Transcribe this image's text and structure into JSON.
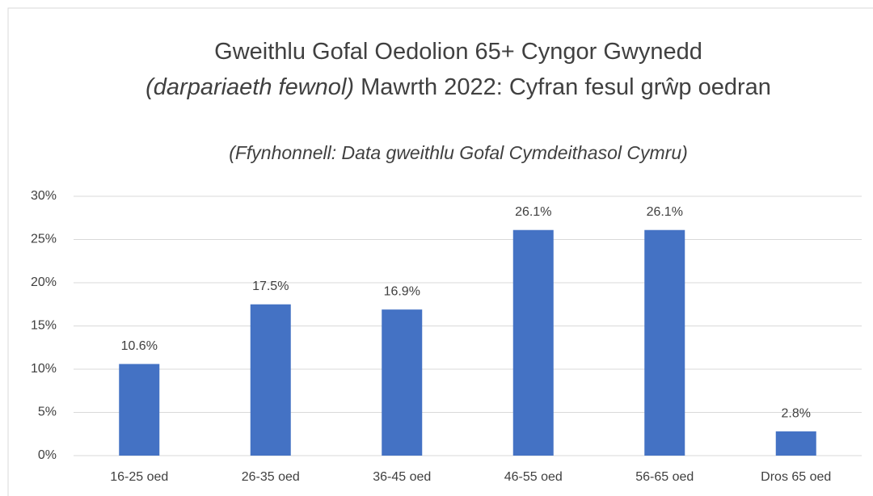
{
  "chart_data": {
    "type": "bar",
    "title": "Gweithlu Gofal Oedolion 65+ Cyngor Gwynedd",
    "title_italic": "(darpariaeth fewnol)",
    "title_cont": "Mawrth 2022: Cyfran fesul grŵp oedran",
    "subtitle": "(Ffynhonnell: Data gweithlu Gofal Cymdeithasol Cymru)",
    "categories": [
      "16-25 oed",
      "26-35 oed",
      "36-45 oed",
      "46-55 oed",
      "56-65 oed",
      "Dros 65 oed"
    ],
    "values": [
      10.6,
      17.5,
      16.9,
      26.1,
      26.1,
      2.8
    ],
    "value_labels": [
      "10.6%",
      "17.5%",
      "16.9%",
      "26.1%",
      "26.1%",
      "2.8%"
    ],
    "color": "#4472c4",
    "ylim": [
      0,
      30
    ],
    "yticks": [
      {
        "value": 0,
        "label": "0%"
      },
      {
        "value": 5,
        "label": "5%"
      },
      {
        "value": 10,
        "label": "10%"
      },
      {
        "value": 15,
        "label": "15%"
      },
      {
        "value": 20,
        "label": "20%"
      },
      {
        "value": 25,
        "label": "25%"
      },
      {
        "value": 30,
        "label": "30%"
      }
    ],
    "grid": true
  }
}
